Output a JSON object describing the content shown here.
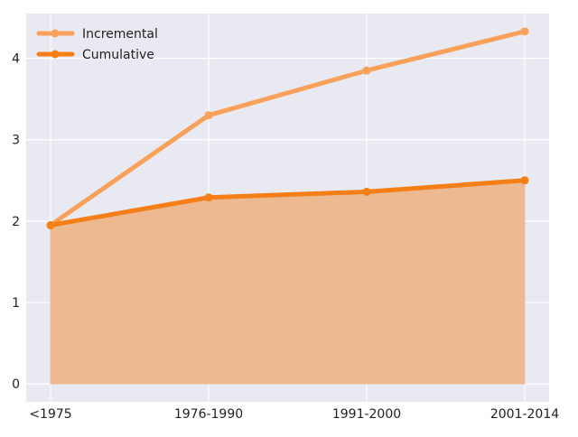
{
  "chart_data": {
    "type": "line",
    "categories": [
      "<1975",
      "1976-1990",
      "1991-2000",
      "2001-2014"
    ],
    "series": [
      {
        "name": "Incremental",
        "values": [
          1.95,
          3.3,
          3.85,
          4.33
        ],
        "color": "#f9a15a"
      },
      {
        "name": "Cumulative",
        "values": [
          1.95,
          2.29,
          2.36,
          2.5
        ],
        "color": "#f47f17",
        "fill": "#ecb990"
      }
    ],
    "yticks": [
      "0",
      "1",
      "2",
      "3",
      "4"
    ],
    "ylim": [
      -0.22,
      4.55
    ],
    "grid": true,
    "legend": "top-left",
    "background": "#e9e9f2"
  }
}
